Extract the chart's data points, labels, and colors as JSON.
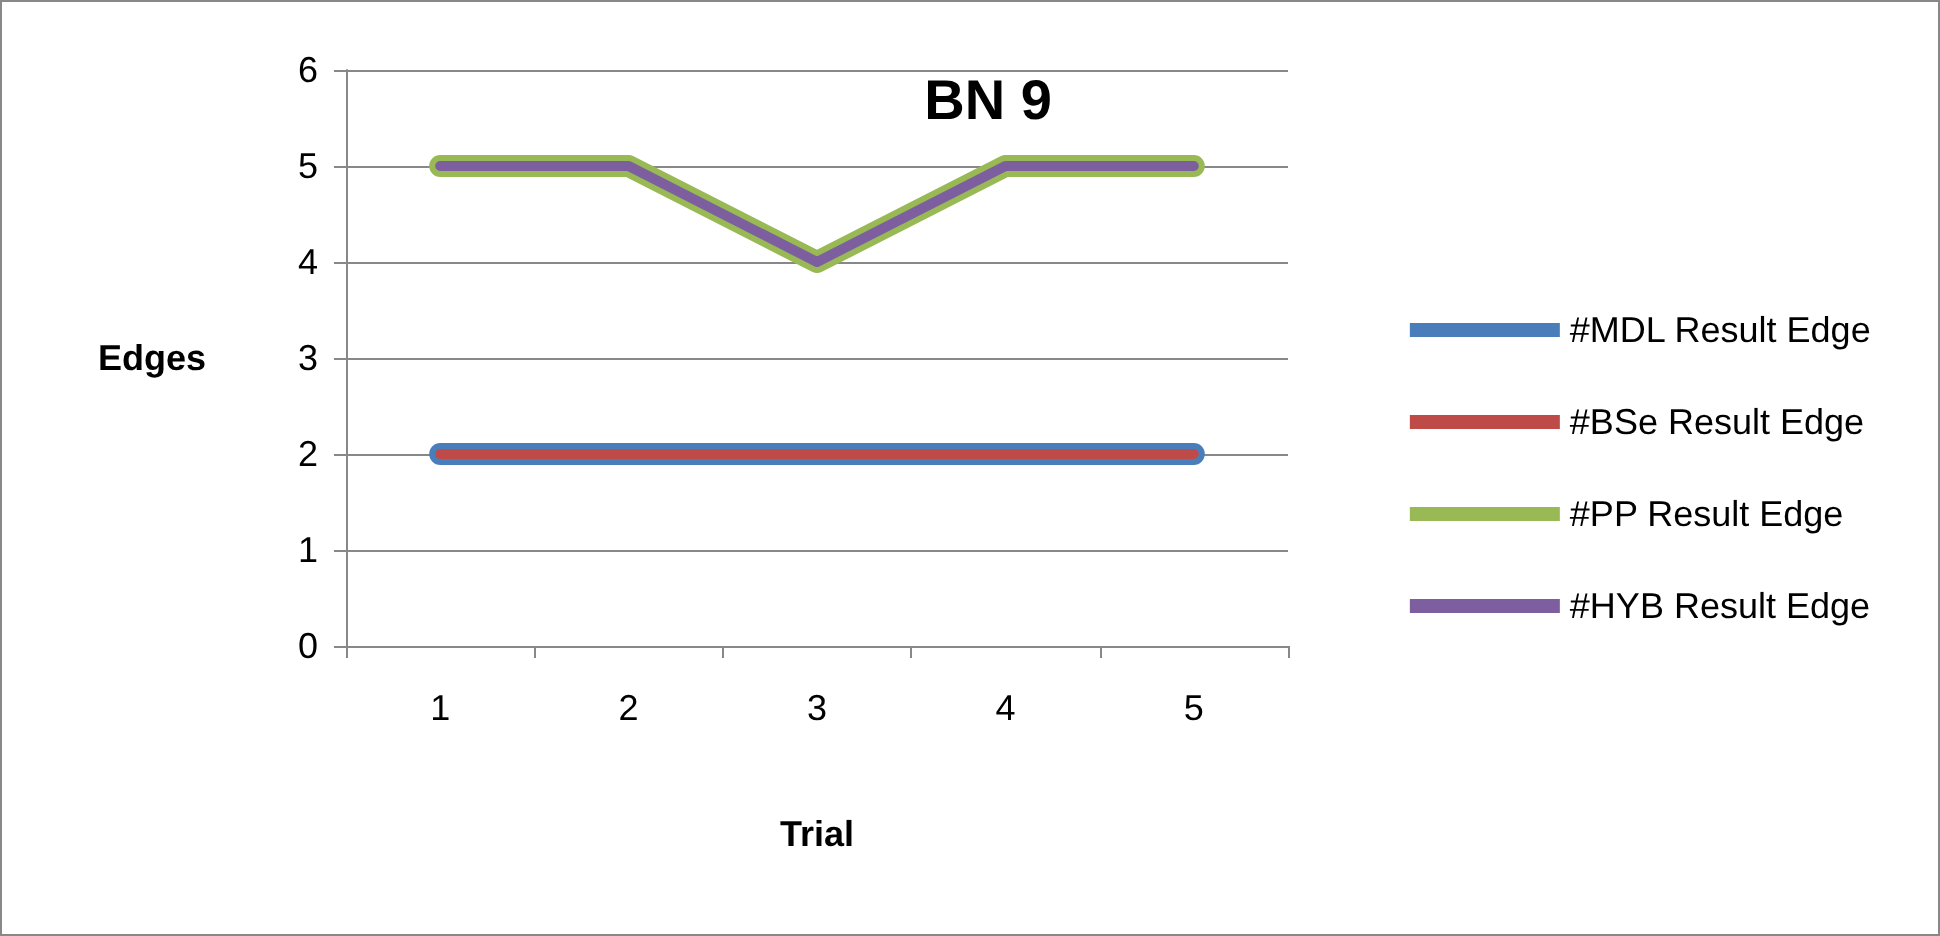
{
  "chart_data": {
    "type": "line",
    "title": "BN 9",
    "xlabel": "Trial",
    "ylabel": "Edges",
    "categories": [
      "1",
      "2",
      "3",
      "4",
      "5"
    ],
    "series": [
      {
        "name": "#MDL Result Edge",
        "color": "#4a7ebb",
        "values": [
          2,
          2,
          2,
          2,
          2
        ]
      },
      {
        "name": "#BSe Result Edge",
        "color": "#be4b48",
        "values": [
          2,
          2,
          2,
          2,
          2
        ]
      },
      {
        "name": "#PP Result Edge",
        "color": "#98b954",
        "values": [
          5,
          5,
          4,
          5,
          5
        ]
      },
      {
        "name": "#HYB Result Edge",
        "color": "#7d5fa0",
        "values": [
          5,
          5,
          4,
          5,
          5
        ]
      }
    ],
    "ylim": [
      0,
      6
    ],
    "yticks": [
      0,
      1,
      2,
      3,
      4,
      5,
      6
    ],
    "grid": "y",
    "legend": "right",
    "marker": "none",
    "line_style": "solid"
  }
}
